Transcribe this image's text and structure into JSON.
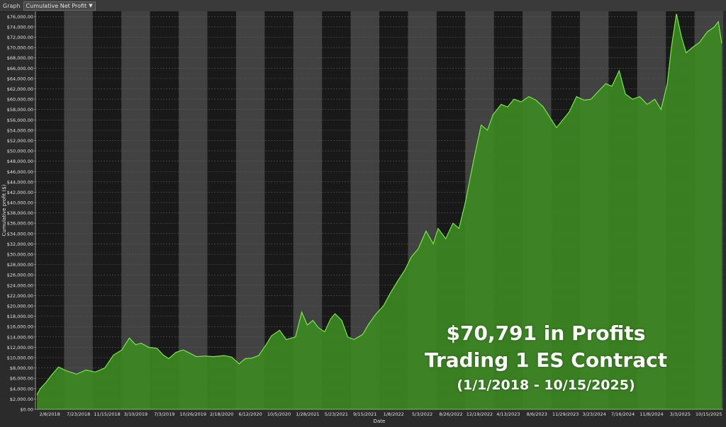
{
  "toolbar": {
    "label": "Graph",
    "select_value": "Cumulative Net Profit"
  },
  "overlay": {
    "line1": "$70,791 in Profits",
    "line2": "Trading 1 ES Contract",
    "line3": "(1/1/2018 - 10/15/2025)"
  },
  "colors": {
    "background": "#2b2b2b",
    "plot_dark": "#191919",
    "plot_light_band": "#424242",
    "area_fill": "#3d8a22",
    "line": "#6ff03a",
    "text": "#e0e0e0"
  },
  "chart_data": {
    "type": "area",
    "title": "",
    "xlabel": "Date",
    "ylabel": "Cumulative profit ($)",
    "ylim": [
      0,
      77000
    ],
    "ytick_step": 2000,
    "grid": true,
    "x_tick_labels": [
      "2/8/2018",
      "7/23/2018",
      "11/15/2018",
      "3/10/2019",
      "7/3/2019",
      "10/26/2019",
      "2/18/2020",
      "6/12/2020",
      "10/5/2020",
      "1/28/2021",
      "5/23/2021",
      "9/15/2021",
      "1/8/2022",
      "5/3/2022",
      "8/26/2022",
      "12/19/2022",
      "4/13/2023",
      "8/6/2023",
      "11/29/2023",
      "3/23/2024",
      "7/16/2024",
      "11/8/2024",
      "3/3/2025",
      "10/15/2025"
    ],
    "series": [
      {
        "x": [
          "2018-01-01",
          "2018-01-15",
          "2018-02-08",
          "2018-03-01",
          "2018-04-01",
          "2018-05-01",
          "2018-06-15",
          "2018-07-23",
          "2018-09-01",
          "2018-10-10",
          "2018-11-15",
          "2018-12-20",
          "2019-01-20",
          "2019-02-15",
          "2019-03-10",
          "2019-04-10",
          "2019-05-15",
          "2019-06-10",
          "2019-07-03",
          "2019-08-01",
          "2019-09-01",
          "2019-10-01",
          "2019-10-26",
          "2019-12-01",
          "2020-01-05",
          "2020-02-18",
          "2020-03-20",
          "2020-04-20",
          "2020-05-15",
          "2020-06-12",
          "2020-07-10",
          "2020-08-10",
          "2020-09-01",
          "2020-10-05",
          "2020-11-01",
          "2020-12-10",
          "2021-01-05",
          "2021-01-28",
          "2021-02-20",
          "2021-03-15",
          "2021-04-10",
          "2021-05-05",
          "2021-05-23",
          "2021-06-20",
          "2021-07-15",
          "2021-08-10",
          "2021-09-15",
          "2021-10-10",
          "2021-11-10",
          "2021-12-10",
          "2022-01-08",
          "2022-02-10",
          "2022-03-10",
          "2022-04-05",
          "2022-05-03",
          "2022-06-05",
          "2022-07-05",
          "2022-07-25",
          "2022-08-26",
          "2022-09-25",
          "2022-10-20",
          "2022-11-15",
          "2022-12-19",
          "2023-01-20",
          "2023-02-15",
          "2023-03-10",
          "2023-04-13",
          "2023-05-10",
          "2023-06-05",
          "2023-07-05",
          "2023-08-06",
          "2023-09-05",
          "2023-10-05",
          "2023-11-01",
          "2023-11-29",
          "2023-12-25",
          "2024-01-20",
          "2024-02-20",
          "2024-03-23",
          "2024-04-20",
          "2024-05-20",
          "2024-06-20",
          "2024-07-16",
          "2024-08-15",
          "2024-09-10",
          "2024-10-10",
          "2024-11-08",
          "2024-12-10",
          "2025-01-10",
          "2025-02-05",
          "2025-03-03",
          "2025-03-20",
          "2025-04-10",
          "2025-05-01",
          "2025-05-20",
          "2025-06-15",
          "2025-07-15",
          "2025-08-15",
          "2025-09-15",
          "2025-10-01",
          "2025-10-15"
        ],
        "y": [
          2800,
          4000,
          5200,
          6500,
          8200,
          7500,
          6800,
          7600,
          7200,
          8000,
          10500,
          11500,
          13800,
          12500,
          12800,
          12000,
          11800,
          10500,
          9800,
          11000,
          11500,
          10800,
          10200,
          10300,
          10200,
          10400,
          10100,
          8800,
          9800,
          9900,
          10400,
          12500,
          14200,
          15300,
          13500,
          14000,
          18800,
          16300,
          17200,
          15800,
          15000,
          17500,
          18500,
          17200,
          14000,
          13500,
          14500,
          16500,
          18500,
          20000,
          22500,
          25000,
          27000,
          29500,
          31000,
          34500,
          32000,
          35000,
          33000,
          36000,
          35000,
          40000,
          48000,
          55000,
          54000,
          57000,
          59000,
          58500,
          60000,
          59500,
          60500,
          59800,
          58500,
          56500,
          54500,
          56000,
          57500,
          60500,
          59800,
          60000,
          61500,
          63000,
          62500,
          65500,
          61000,
          60000,
          60500,
          59000,
          60000,
          58000,
          63000,
          70000,
          76500,
          72000,
          69000,
          70000,
          71000,
          73000,
          74000,
          75000,
          70791
        ]
      }
    ]
  }
}
